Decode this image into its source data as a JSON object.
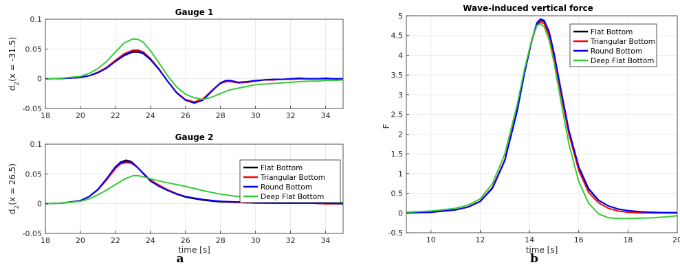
{
  "colors": {
    "flat": "#000000",
    "triangular": "#ff0000",
    "round": "#0000ff",
    "deep": "#33cc33"
  },
  "panel_labels": [
    "a",
    "b"
  ],
  "chart_data": [
    {
      "type": "line",
      "title": "Gauge 1",
      "xlabel": "",
      "ylabel_main": "d",
      "ylabel_sub": "2",
      "ylabel_rest": "(x = -31.5)",
      "xlim": [
        18,
        35
      ],
      "ylim": [
        -0.05,
        0.1
      ],
      "xticks": [
        18,
        20,
        22,
        24,
        26,
        28,
        30,
        32,
        34
      ],
      "yticks": [
        -0.05,
        0,
        0.05,
        0.1
      ],
      "ytick_labels": [
        "-0.05",
        "0",
        "0.05",
        "0.1"
      ],
      "grid": true,
      "legend": null,
      "series": [
        {
          "key": "flat",
          "x": [
            18,
            19,
            20,
            20.5,
            21,
            21.5,
            22,
            22.5,
            23,
            23.3,
            23.6,
            24,
            24.5,
            25,
            25.5,
            26,
            26.5,
            27,
            27.5,
            28,
            28.3,
            28.6,
            29,
            29.5,
            30,
            30.5,
            31,
            31.5,
            32,
            32.5,
            33,
            33.5,
            34,
            34.5,
            35
          ],
          "y": [
            0,
            0.0005,
            0.002,
            0.005,
            0.01,
            0.018,
            0.029,
            0.039,
            0.045,
            0.045,
            0.042,
            0.032,
            0.015,
            -0.005,
            -0.023,
            -0.036,
            -0.04,
            -0.035,
            -0.02,
            -0.007,
            -0.004,
            -0.004,
            -0.007,
            -0.006,
            -0.004,
            -0.002,
            -0.002,
            -0.001,
            -0.001,
            0,
            0,
            0,
            0,
            0,
            0
          ]
        },
        {
          "key": "triangular",
          "x": [
            18,
            19,
            20,
            20.5,
            21,
            21.5,
            22,
            22.5,
            23,
            23.3,
            23.6,
            24,
            24.5,
            25,
            25.5,
            26,
            26.5,
            27,
            27.5,
            28,
            28.3,
            28.6,
            29,
            29.5,
            30,
            30.5,
            31,
            31.5,
            32,
            32.5,
            33,
            33.5,
            34,
            34.5,
            35
          ],
          "y": [
            0,
            0.0005,
            0.002,
            0.005,
            0.011,
            0.019,
            0.031,
            0.042,
            0.048,
            0.048,
            0.045,
            0.034,
            0.016,
            -0.005,
            -0.023,
            -0.035,
            -0.039,
            -0.034,
            -0.02,
            -0.008,
            -0.005,
            -0.005,
            -0.007,
            -0.006,
            -0.004,
            -0.002,
            -0.002,
            -0.001,
            -0.001,
            0,
            0,
            0,
            0,
            0,
            0
          ]
        },
        {
          "key": "round",
          "x": [
            18,
            19,
            20,
            20.5,
            21,
            21.5,
            22,
            22.5,
            23,
            23.3,
            23.6,
            24,
            24.5,
            25,
            25.5,
            26,
            26.5,
            27,
            27.5,
            28,
            28.3,
            28.6,
            29,
            29.5,
            30,
            30.5,
            31,
            31.5,
            32,
            32.5,
            33,
            33.5,
            34,
            34.5,
            35
          ],
          "y": [
            0,
            0.0005,
            0.002,
            0.005,
            0.01,
            0.018,
            0.029,
            0.04,
            0.046,
            0.046,
            0.043,
            0.033,
            0.015,
            -0.005,
            -0.024,
            -0.036,
            -0.041,
            -0.036,
            -0.021,
            -0.007,
            -0.003,
            -0.003,
            -0.006,
            -0.005,
            -0.003,
            -0.002,
            -0.001,
            -0.001,
            0,
            0.001,
            0,
            0,
            0.001,
            0,
            0
          ]
        },
        {
          "key": "deep",
          "x": [
            18,
            19,
            20,
            20.5,
            21,
            21.5,
            22,
            22.5,
            23,
            23.3,
            23.6,
            24,
            24.5,
            25,
            25.5,
            26,
            26.5,
            27,
            27.5,
            28,
            28.5,
            29,
            29.5,
            30,
            30.5,
            31,
            31.5,
            32,
            32.5,
            33,
            33.5,
            34,
            34.5,
            35
          ],
          "y": [
            0,
            0.001,
            0.004,
            0.009,
            0.017,
            0.029,
            0.045,
            0.06,
            0.067,
            0.066,
            0.061,
            0.047,
            0.026,
            0.004,
            -0.014,
            -0.026,
            -0.032,
            -0.035,
            -0.031,
            -0.025,
            -0.019,
            -0.016,
            -0.013,
            -0.01,
            -0.009,
            -0.008,
            -0.007,
            -0.006,
            -0.005,
            -0.004,
            -0.004,
            -0.003,
            -0.003,
            -0.002
          ]
        }
      ]
    },
    {
      "type": "line",
      "title": "Gauge 2",
      "xlabel": "time [s]",
      "ylabel_main": "d",
      "ylabel_sub": "2",
      "ylabel_rest": "(x = 26.5)",
      "xlim": [
        18,
        35
      ],
      "ylim": [
        -0.05,
        0.1
      ],
      "xticks": [
        18,
        20,
        22,
        24,
        26,
        28,
        30,
        32,
        34
      ],
      "yticks": [
        -0.05,
        0,
        0.05,
        0.1
      ],
      "ytick_labels": [
        "-0.05",
        "0",
        "0.05",
        "0.1"
      ],
      "grid": true,
      "legend": "top-right",
      "legend_entries": [
        "Flat Bottom",
        "Triangular Bottom",
        "Round Bottom",
        "Deep Flat Bottom"
      ],
      "series": [
        {
          "key": "flat",
          "x": [
            18,
            19,
            20,
            20.5,
            21,
            21.5,
            22,
            22.3,
            22.6,
            22.9,
            23.2,
            23.6,
            24,
            24.5,
            25,
            25.5,
            26,
            27,
            28,
            29,
            30,
            31,
            32,
            33,
            34,
            35
          ],
          "y": [
            0,
            0.001,
            0.005,
            0.012,
            0.024,
            0.042,
            0.062,
            0.07,
            0.073,
            0.071,
            0.063,
            0.05,
            0.038,
            0.029,
            0.022,
            0.016,
            0.011,
            0.006,
            0.003,
            0.002,
            0.001,
            0.001,
            0.001,
            0.001,
            0,
            0
          ]
        },
        {
          "key": "triangular",
          "x": [
            18,
            19,
            20,
            20.5,
            21,
            21.5,
            22,
            22.3,
            22.6,
            22.9,
            23.2,
            23.6,
            24,
            24.5,
            25,
            25.5,
            26,
            27,
            28,
            29,
            30,
            31,
            32,
            33,
            34,
            35
          ],
          "y": [
            0,
            0.001,
            0.005,
            0.012,
            0.023,
            0.04,
            0.059,
            0.067,
            0.069,
            0.068,
            0.062,
            0.051,
            0.04,
            0.031,
            0.023,
            0.017,
            0.012,
            0.007,
            0.004,
            0.002,
            0.001,
            0.001,
            0.001,
            0.001,
            0,
            0
          ]
        },
        {
          "key": "round",
          "x": [
            18,
            19,
            20,
            20.5,
            21,
            21.5,
            22,
            22.3,
            22.6,
            22.9,
            23.2,
            23.6,
            24,
            24.5,
            25,
            25.5,
            26,
            27,
            28,
            29,
            30,
            31,
            32,
            33,
            34,
            35
          ],
          "y": [
            0,
            0.001,
            0.005,
            0.012,
            0.024,
            0.042,
            0.062,
            0.069,
            0.071,
            0.07,
            0.063,
            0.051,
            0.038,
            0.029,
            0.022,
            0.016,
            0.012,
            0.007,
            0.004,
            0.003,
            0.002,
            0.001,
            0.001,
            0.001,
            0.001,
            0
          ]
        },
        {
          "key": "deep",
          "x": [
            18,
            19,
            20,
            20.5,
            21,
            21.5,
            22,
            22.5,
            23,
            23.3,
            23.6,
            24,
            24.5,
            25,
            26,
            27,
            28,
            29,
            30,
            31,
            32,
            33,
            34,
            35
          ],
          "y": [
            0,
            0.001,
            0.004,
            0.008,
            0.015,
            0.023,
            0.032,
            0.041,
            0.047,
            0.047,
            0.045,
            0.042,
            0.038,
            0.035,
            0.029,
            0.022,
            0.016,
            0.012,
            0.009,
            0.007,
            0.005,
            0.004,
            0.003,
            0.002
          ]
        }
      ]
    },
    {
      "type": "line",
      "title": "Wave-induced vertical force",
      "xlabel": "time [s]",
      "ylabel": "F",
      "xlim": [
        9,
        20
      ],
      "ylim": [
        -0.5,
        5
      ],
      "xticks": [
        10,
        12,
        14,
        16,
        18,
        20
      ],
      "yticks": [
        -0.5,
        0,
        0.5,
        1,
        1.5,
        2,
        2.5,
        3,
        3.5,
        4,
        4.5,
        5
      ],
      "ytick_labels": [
        "-0.5",
        "0",
        "0.5",
        "1",
        "1.5",
        "2",
        "2.5",
        "3",
        "3.5",
        "4",
        "4.5",
        "5"
      ],
      "grid": true,
      "legend": "top-right",
      "legend_entries": [
        "Flat Bottom",
        "Triangular Bottom",
        "Round Bottom",
        "Deep Flat Bottom"
      ],
      "series": [
        {
          "key": "flat",
          "x": [
            9,
            10,
            11,
            11.5,
            12,
            12.5,
            13,
            13.5,
            13.8,
            14.1,
            14.3,
            14.45,
            14.6,
            14.8,
            15,
            15.3,
            15.6,
            16,
            16.4,
            16.8,
            17.2,
            17.6,
            18,
            18.5,
            19,
            19.5,
            20
          ],
          "y": [
            0,
            0.02,
            0.08,
            0.15,
            0.3,
            0.65,
            1.35,
            2.6,
            3.55,
            4.4,
            4.8,
            4.9,
            4.85,
            4.55,
            4.0,
            3.0,
            2.05,
            1.15,
            0.6,
            0.32,
            0.18,
            0.1,
            0.06,
            0.03,
            0.01,
            0.01,
            0.01
          ]
        },
        {
          "key": "triangular",
          "x": [
            9,
            10,
            11,
            11.5,
            12,
            12.5,
            13,
            13.5,
            13.8,
            14.1,
            14.3,
            14.45,
            14.6,
            14.8,
            15,
            15.3,
            15.6,
            16,
            16.4,
            16.8,
            17.2,
            17.6,
            18,
            18.5,
            19,
            19.5,
            20
          ],
          "y": [
            0,
            0.02,
            0.08,
            0.15,
            0.3,
            0.65,
            1.35,
            2.6,
            3.55,
            4.38,
            4.76,
            4.85,
            4.8,
            4.5,
            3.95,
            2.95,
            2.0,
            1.08,
            0.52,
            0.26,
            0.12,
            0.05,
            0.02,
            0.0,
            0.0,
            0.0,
            0.0
          ]
        },
        {
          "key": "round",
          "x": [
            9,
            10,
            11,
            11.5,
            12,
            12.5,
            13,
            13.5,
            13.8,
            14.1,
            14.3,
            14.45,
            14.6,
            14.8,
            15,
            15.3,
            15.6,
            16,
            16.4,
            16.8,
            17.2,
            17.6,
            18,
            18.5,
            19,
            19.5,
            20
          ],
          "y": [
            0,
            0.02,
            0.08,
            0.15,
            0.29,
            0.63,
            1.33,
            2.58,
            3.55,
            4.4,
            4.82,
            4.92,
            4.88,
            4.6,
            4.05,
            3.05,
            2.1,
            1.18,
            0.62,
            0.33,
            0.18,
            0.1,
            0.06,
            0.03,
            0.02,
            0.01,
            0.01
          ]
        },
        {
          "key": "deep",
          "x": [
            9,
            10,
            11,
            11.5,
            12,
            12.5,
            13,
            13.5,
            13.8,
            14.1,
            14.3,
            14.45,
            14.6,
            14.8,
            15,
            15.3,
            15.6,
            16,
            16.4,
            16.8,
            17.2,
            17.6,
            18,
            18.5,
            19,
            19.5,
            20
          ],
          "y": [
            0.02,
            0.05,
            0.12,
            0.2,
            0.36,
            0.75,
            1.5,
            2.75,
            3.65,
            4.42,
            4.75,
            4.8,
            4.72,
            4.38,
            3.8,
            2.75,
            1.75,
            0.8,
            0.25,
            -0.02,
            -0.12,
            -0.14,
            -0.14,
            -0.13,
            -0.12,
            -0.1,
            -0.07
          ]
        }
      ]
    }
  ]
}
